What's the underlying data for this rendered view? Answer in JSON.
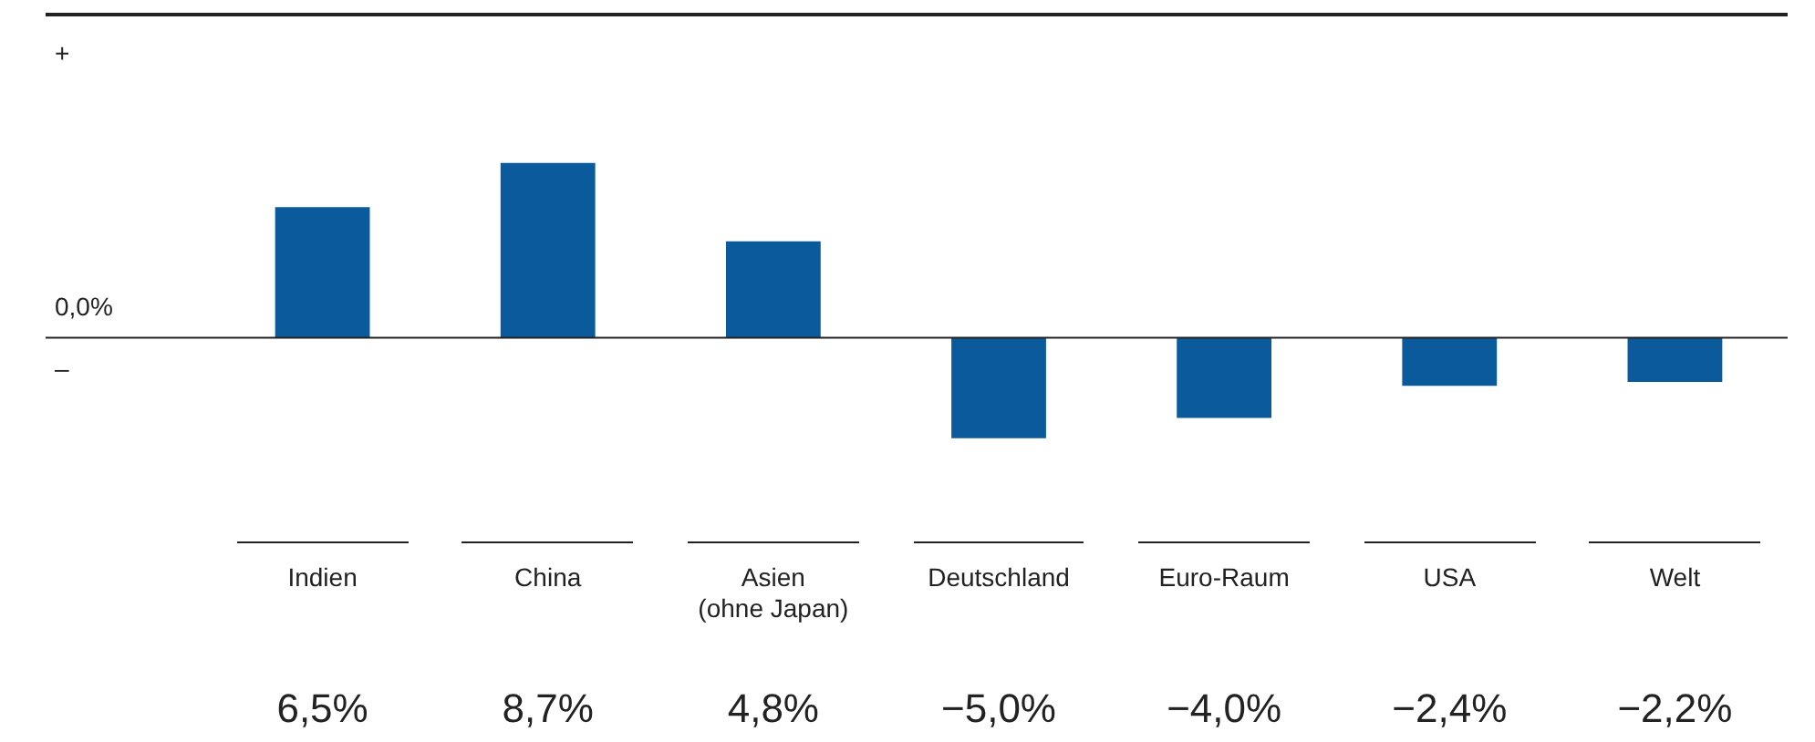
{
  "chart_data": {
    "type": "bar",
    "categories": [
      "Indien",
      "China",
      "Asien (ohne Japan)",
      "Deutschland",
      "Euro-Raum",
      "USA",
      "Welt"
    ],
    "values": [
      6.5,
      8.7,
      4.8,
      -5.0,
      -4.0,
      -2.4,
      -2.2
    ],
    "value_labels": [
      "6,5%",
      "8,7%",
      "4,8%",
      "−5,0%",
      "−4,0%",
      "−2,4%",
      "−2,2%"
    ],
    "color": "#0a5a9c",
    "annotations": [
      "+",
      "0,0%",
      "–"
    ]
  }
}
